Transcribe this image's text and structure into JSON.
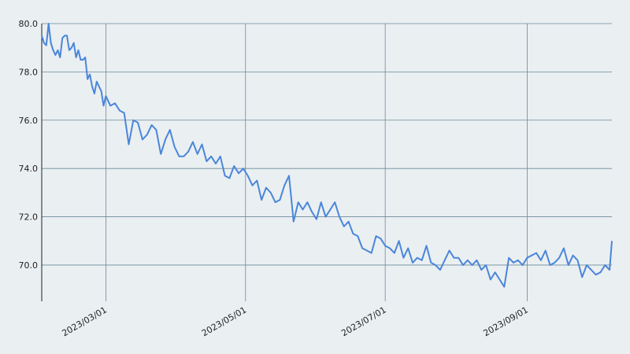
{
  "chart_data": {
    "type": "line",
    "title": "",
    "xlabel": "",
    "ylabel": "",
    "xlim": [
      "2023-02-01",
      "2023-10-08"
    ],
    "ylim": [
      68.5,
      80.0
    ],
    "y_ticks": [
      70.0,
      72.0,
      74.0,
      76.0,
      78.0,
      80.0
    ],
    "y_tick_labels": [
      "70.0",
      "72.0",
      "74.0",
      "76.0",
      "78.0",
      "80.0"
    ],
    "x_ticks": [
      "2023-03-01",
      "2023-05-01",
      "2023-07-01",
      "2023-09-01"
    ],
    "x_tick_labels": [
      "2023/03/01",
      "2023/05/01",
      "2023/07/01",
      "2023/09/01"
    ],
    "grid": true,
    "legend": "none",
    "line_color": "#4a86d9",
    "series": [
      {
        "x": [
          "2023-02-01",
          "2023-02-02",
          "2023-02-03",
          "2023-02-04",
          "2023-02-05",
          "2023-02-06",
          "2023-02-07",
          "2023-02-08",
          "2023-02-09",
          "2023-02-10",
          "2023-02-11",
          "2023-02-12",
          "2023-02-13",
          "2023-02-14",
          "2023-02-15",
          "2023-02-16",
          "2023-02-17",
          "2023-02-18",
          "2023-02-19",
          "2023-02-20",
          "2023-02-21",
          "2023-02-22",
          "2023-02-23",
          "2023-02-24",
          "2023-02-25",
          "2023-02-26",
          "2023-02-27",
          "2023-02-28",
          "2023-03-01",
          "2023-03-03",
          "2023-03-05",
          "2023-03-07",
          "2023-03-09",
          "2023-03-11",
          "2023-03-13",
          "2023-03-15",
          "2023-03-17",
          "2023-03-19",
          "2023-03-21",
          "2023-03-23",
          "2023-03-25",
          "2023-03-27",
          "2023-03-29",
          "2023-03-31",
          "2023-04-02",
          "2023-04-04",
          "2023-04-06",
          "2023-04-08",
          "2023-04-10",
          "2023-04-12",
          "2023-04-14",
          "2023-04-16",
          "2023-04-18",
          "2023-04-20",
          "2023-04-22",
          "2023-04-24",
          "2023-04-26",
          "2023-04-28",
          "2023-04-30",
          "2023-05-02",
          "2023-05-04",
          "2023-05-06",
          "2023-05-08",
          "2023-05-10",
          "2023-05-12",
          "2023-05-14",
          "2023-05-16",
          "2023-05-18",
          "2023-05-20",
          "2023-05-22",
          "2023-05-24",
          "2023-05-26",
          "2023-05-28",
          "2023-05-30",
          "2023-06-01",
          "2023-06-03",
          "2023-06-05",
          "2023-06-07",
          "2023-06-09",
          "2023-06-11",
          "2023-06-13",
          "2023-06-15",
          "2023-06-17",
          "2023-06-19",
          "2023-06-21",
          "2023-06-23",
          "2023-06-25",
          "2023-06-27",
          "2023-06-29",
          "2023-07-01",
          "2023-07-03",
          "2023-07-05",
          "2023-07-07",
          "2023-07-09",
          "2023-07-11",
          "2023-07-13",
          "2023-07-15",
          "2023-07-17",
          "2023-07-19",
          "2023-07-21",
          "2023-07-23",
          "2023-07-25",
          "2023-07-27",
          "2023-07-29",
          "2023-07-31",
          "2023-08-02",
          "2023-08-04",
          "2023-08-06",
          "2023-08-08",
          "2023-08-10",
          "2023-08-12",
          "2023-08-14",
          "2023-08-16",
          "2023-08-18",
          "2023-08-20",
          "2023-08-22",
          "2023-08-24",
          "2023-08-26",
          "2023-08-28",
          "2023-08-30",
          "2023-09-01",
          "2023-09-03",
          "2023-09-05",
          "2023-09-07",
          "2023-09-09",
          "2023-09-11",
          "2023-09-13",
          "2023-09-15",
          "2023-09-17",
          "2023-09-19",
          "2023-09-21",
          "2023-09-23",
          "2023-09-25",
          "2023-09-27",
          "2023-09-29",
          "2023-10-01",
          "2023-10-03",
          "2023-10-05",
          "2023-10-07",
          "2023-10-08"
        ],
        "y": [
          79.5,
          79.2,
          79.1,
          80.0,
          79.2,
          78.9,
          78.7,
          78.9,
          78.6,
          79.4,
          79.5,
          79.5,
          78.9,
          79.0,
          79.2,
          78.6,
          78.9,
          78.5,
          78.5,
          78.6,
          77.7,
          77.9,
          77.4,
          77.1,
          77.6,
          77.4,
          77.2,
          76.6,
          77.0,
          76.6,
          76.7,
          76.4,
          76.3,
          75.0,
          76.0,
          75.9,
          75.2,
          75.4,
          75.8,
          75.6,
          74.6,
          75.2,
          75.6,
          74.9,
          74.5,
          74.5,
          74.7,
          75.1,
          74.6,
          75.0,
          74.3,
          74.5,
          74.2,
          74.5,
          73.7,
          73.6,
          74.1,
          73.8,
          74.0,
          73.7,
          73.3,
          73.5,
          72.7,
          73.2,
          73.0,
          72.6,
          72.7,
          73.3,
          73.7,
          71.8,
          72.6,
          72.3,
          72.6,
          72.2,
          71.9,
          72.6,
          72.0,
          72.3,
          72.6,
          72.0,
          71.6,
          71.8,
          71.3,
          71.2,
          70.7,
          70.6,
          70.5,
          71.2,
          71.1,
          70.8,
          70.7,
          70.5,
          71.0,
          70.3,
          70.7,
          70.1,
          70.3,
          70.2,
          70.8,
          70.1,
          70.0,
          69.8,
          70.2,
          70.6,
          70.3,
          70.3,
          70.0,
          70.2,
          70.0,
          70.2,
          69.8,
          70.0,
          69.4,
          69.7,
          69.4,
          69.1,
          70.3,
          70.1,
          70.2,
          70.0,
          70.3,
          70.4,
          70.5,
          70.2,
          70.6,
          70.0,
          70.1,
          70.3,
          70.7,
          70.0,
          70.4,
          70.2,
          69.5,
          70.0,
          69.8,
          69.6,
          69.7,
          70.0,
          69.8,
          71.0
        ]
      }
    ]
  }
}
